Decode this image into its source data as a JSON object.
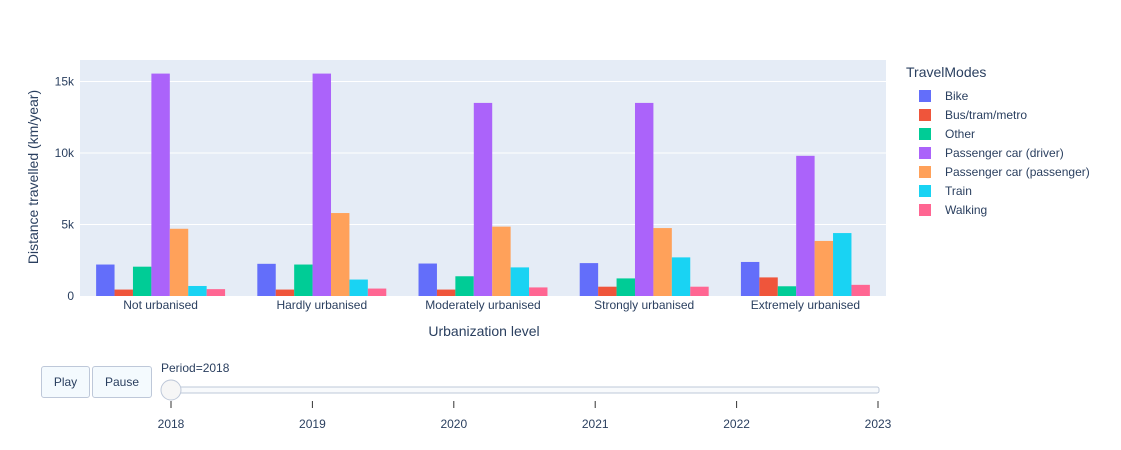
{
  "chart_data": {
    "type": "bar",
    "title": "",
    "xlabel": "Urbanization level",
    "ylabel": "Distance travelled (km/year)",
    "ylim": [
      0,
      16500
    ],
    "yticks": [
      0,
      5000,
      10000,
      15000
    ],
    "ytick_labels": [
      "0",
      "5k",
      "10k",
      "15k"
    ],
    "grid": true,
    "legend_title": "TravelModes",
    "legend_position": "right",
    "categories": [
      "Not urbanised",
      "Hardly urbanised",
      "Moderately urbanised",
      "Strongly urbanised",
      "Extremely urbanised"
    ],
    "series": [
      {
        "name": "Bike",
        "color": "#636efa",
        "values": [
          2200,
          2250,
          2270,
          2300,
          2380
        ]
      },
      {
        "name": "Bus/tram/metro",
        "color": "#EF553B",
        "values": [
          450,
          450,
          450,
          650,
          1300
        ]
      },
      {
        "name": "Other",
        "color": "#00cc96",
        "values": [
          2050,
          2200,
          1380,
          1230,
          680
        ]
      },
      {
        "name": "Passenger car (driver)",
        "color": "#ab63fa",
        "values": [
          15550,
          15550,
          13500,
          13500,
          9800
        ]
      },
      {
        "name": "Passenger car (passenger)",
        "color": "#FFA15A",
        "values": [
          4700,
          5800,
          4850,
          4750,
          3850
        ]
      },
      {
        "name": "Train",
        "color": "#19d3f3",
        "values": [
          700,
          1150,
          2000,
          2700,
          4400
        ]
      },
      {
        "name": "Walking",
        "color": "#FF6692",
        "values": [
          480,
          520,
          600,
          650,
          780
        ]
      }
    ]
  },
  "controls": {
    "play_label": "Play",
    "pause_label": "Pause",
    "slider_label": "Period=2018",
    "slider_steps": [
      "2018",
      "2019",
      "2020",
      "2021",
      "2022",
      "2023"
    ],
    "slider_value": "2018"
  }
}
